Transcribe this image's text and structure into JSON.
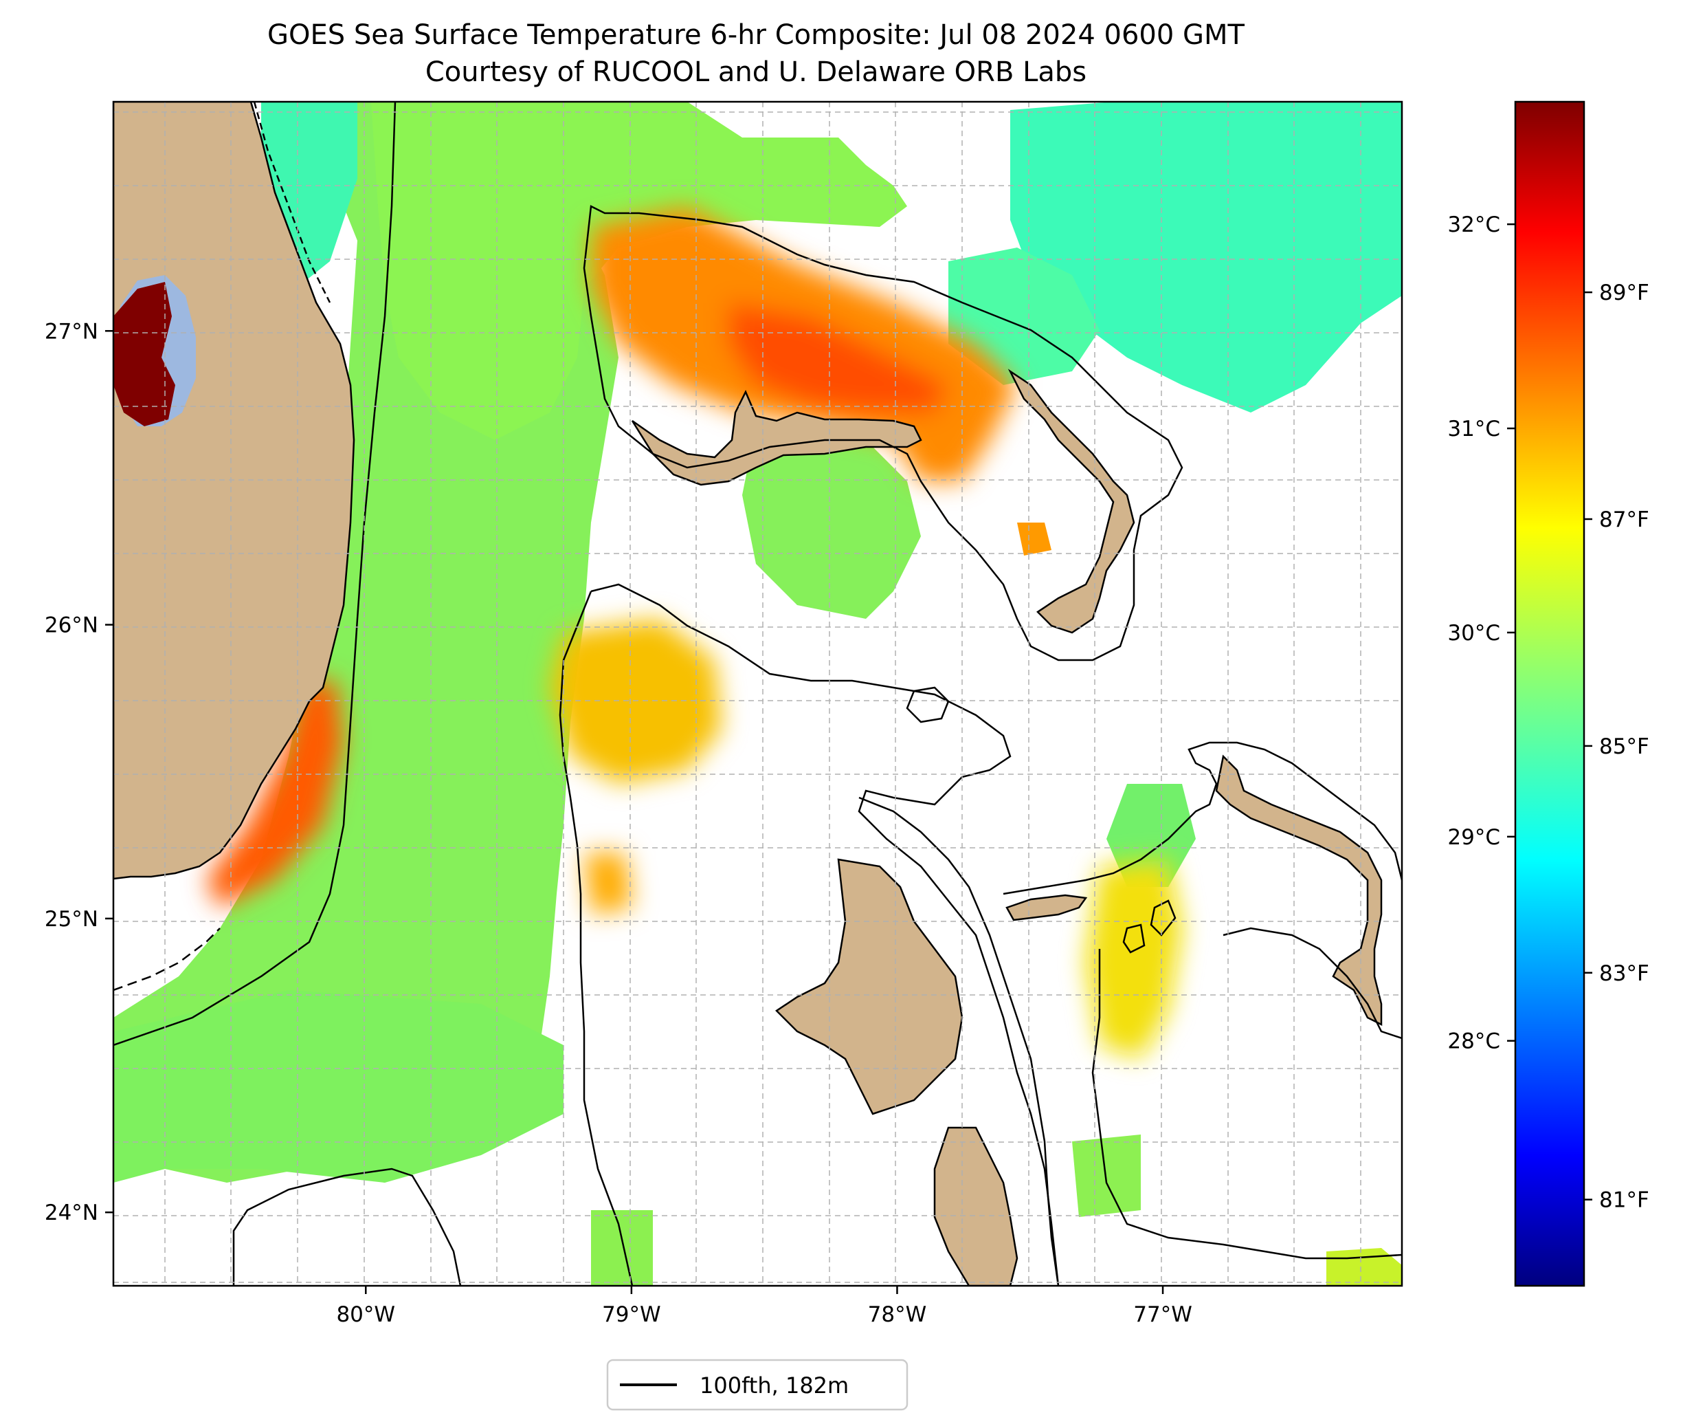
{
  "figure": {
    "title": "GOES Sea Surface Temperature 6-hr Composite: Jul 08 2024 0600 GMT",
    "subtitle": "Courtesy of RUCOOL and U. Delaware ORB Labs"
  },
  "map": {
    "lon_range": [
      -80.95,
      -76.1
    ],
    "lat_range": [
      23.75,
      27.78
    ],
    "lon_ticks": [
      {
        "value": -80,
        "label": "80°W"
      },
      {
        "value": -79,
        "label": "79°W"
      },
      {
        "value": -78,
        "label": "78°W"
      },
      {
        "value": -77,
        "label": "77°W"
      }
    ],
    "lat_ticks": [
      {
        "value": 24,
        "label": "24°N"
      },
      {
        "value": 25,
        "label": "25°N"
      },
      {
        "value": 26,
        "label": "26°N"
      },
      {
        "value": 27,
        "label": "27°N"
      }
    ],
    "gridlines": true,
    "colors": {
      "land": "#d2b48c",
      "lake": "#9db8e0",
      "grid": "#b0b0b0",
      "sst_green": "#7ff25a",
      "sst_cyan": "#3dfbb8",
      "sst_yellow": "#d8f21e",
      "sst_orange": "#ffa000",
      "sst_red": "#ff4a00",
      "sst_darkred": "#7f0000"
    }
  },
  "colorbar": {
    "colormap": "jet",
    "celsius_ticks": [
      {
        "value": 28,
        "label": "28°C"
      },
      {
        "value": 29,
        "label": "29°C"
      },
      {
        "value": 30,
        "label": "30°C"
      },
      {
        "value": 31,
        "label": "31°C"
      },
      {
        "value": 32,
        "label": "32°C"
      }
    ],
    "fahrenheit_ticks": [
      {
        "value": 81,
        "label": "81°F"
      },
      {
        "value": 83,
        "label": "83°F"
      },
      {
        "value": 85,
        "label": "85°F"
      },
      {
        "value": 87,
        "label": "87°F"
      },
      {
        "value": 89,
        "label": "89°F"
      }
    ],
    "range_celsius": [
      26.8,
      32.6
    ]
  },
  "legend": {
    "entries": [
      {
        "label": "100fth, 182m",
        "style": "solid-black-line"
      }
    ],
    "placement": "bottom-center"
  }
}
